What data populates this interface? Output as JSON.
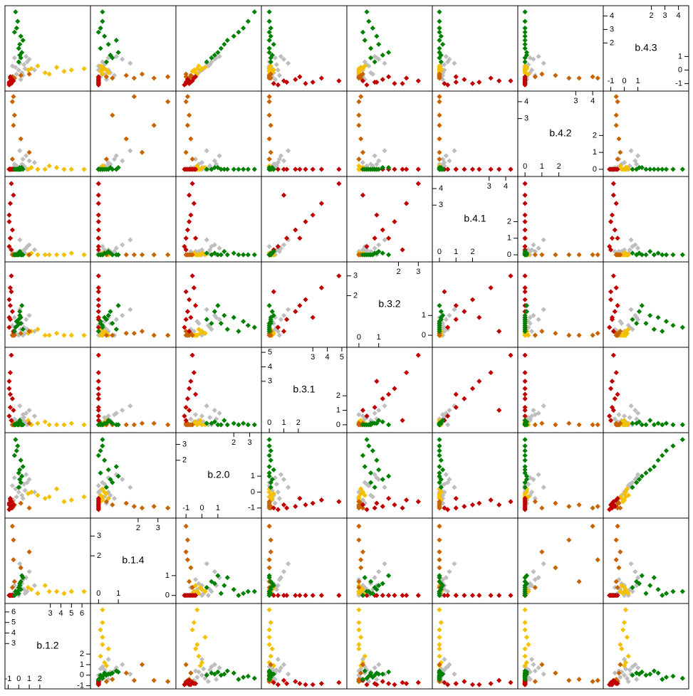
{
  "chart_data": {
    "type": "splom",
    "variables": [
      {
        "label": "b.1.2",
        "lim": [
          -1.1,
          6.6
        ],
        "ticks": [
          -1,
          0,
          1,
          2,
          3,
          4,
          5,
          6
        ]
      },
      {
        "label": "b.1.4",
        "lim": [
          -0.3,
          3.8
        ],
        "ticks": [
          0,
          1,
          2,
          3
        ]
      },
      {
        "label": "b.2.0",
        "lim": [
          -1.5,
          3.6
        ],
        "ticks": [
          -1,
          0,
          1,
          2,
          3
        ]
      },
      {
        "label": "b.3.1",
        "lim": [
          -0.4,
          5.2
        ],
        "ticks": [
          0,
          1,
          2,
          3,
          4,
          5
        ]
      },
      {
        "label": "b.3.2",
        "lim": [
          -0.5,
          3.6
        ],
        "ticks": [
          0,
          1,
          2,
          3
        ]
      },
      {
        "label": "b.4.1",
        "lim": [
          -0.3,
          4.6
        ],
        "ticks": [
          0,
          1,
          2,
          3,
          4
        ]
      },
      {
        "label": "b.4.2",
        "lim": [
          -0.3,
          4.5
        ],
        "ticks": [
          0,
          1,
          2,
          3,
          4
        ]
      },
      {
        "label": "b.4.3",
        "lim": [
          -1.4,
          4.6
        ],
        "ticks": [
          -1,
          0,
          1,
          2,
          3,
          4
        ]
      }
    ],
    "groups": [
      {
        "color": "#bebebe",
        "points": [
          [
            0.0,
            0.0,
            0.0,
            0.0,
            0.0,
            0.0,
            0.0,
            0.0
          ],
          [
            0.5,
            0.3,
            0.5,
            0.5,
            0.4,
            0.3,
            0.2,
            0.4
          ],
          [
            -0.5,
            0.1,
            -0.5,
            0.2,
            0.2,
            0.1,
            0.1,
            -0.5
          ],
          [
            1.0,
            1.2,
            0.8,
            1.0,
            1.0,
            0.6,
            0.5,
            0.8
          ],
          [
            0.3,
            0.6,
            -0.2,
            0.3,
            0.6,
            0.2,
            0.3,
            -0.2
          ],
          [
            -0.3,
            0.2,
            0.2,
            0.1,
            0.1,
            0.0,
            0.0,
            0.2
          ],
          [
            0.7,
            0.9,
            1.1,
            0.8,
            0.8,
            0.4,
            0.8,
            1.0
          ],
          [
            0.2,
            0.4,
            -0.7,
            0.4,
            0.3,
            0.2,
            0.1,
            -0.7
          ],
          [
            -0.6,
            0.0,
            0.4,
            0.0,
            0.5,
            0.1,
            0.0,
            0.3
          ],
          [
            1.5,
            0.5,
            0.0,
            0.6,
            0.2,
            0.3,
            0.4,
            0.0
          ],
          [
            0.1,
            1.6,
            0.3,
            1.3,
            1.3,
            0.9,
            1.1,
            0.5
          ],
          [
            -0.2,
            0.3,
            -0.3,
            0.2,
            0.7,
            0.1,
            0.2,
            -0.3
          ],
          [
            0.8,
            0.2,
            0.6,
            0.0,
            0.3,
            0.5,
            0.0,
            0.6
          ],
          [
            0.4,
            0.8,
            -0.4,
            0.7,
            0.0,
            0.2,
            0.6,
            -0.4
          ],
          [
            -0.4,
            0.5,
            0.9,
            0.4,
            0.9,
            0.0,
            0.3,
            0.9
          ],
          [
            0.6,
            0.1,
            0.1,
            0.2,
            0.1,
            0.1,
            0.1,
            0.1
          ]
        ]
      },
      {
        "color": "#f5c000",
        "points": [
          [
            6.2,
            0.2,
            -0.3,
            0.0,
            0.0,
            0.0,
            0.0,
            0.1
          ],
          [
            5.0,
            0.2,
            -0.5,
            0.1,
            0.0,
            0.1,
            0.0,
            0.0
          ],
          [
            3.6,
            0.2,
            0.2,
            0.0,
            0.1,
            0.0,
            0.1,
            0.2
          ],
          [
            2.5,
            0.5,
            -0.4,
            0.2,
            0.0,
            0.0,
            0.0,
            -0.2
          ],
          [
            1.8,
            0.1,
            -0.2,
            0.1,
            0.3,
            0.0,
            0.0,
            0.3
          ],
          [
            1.2,
            0.3,
            0.0,
            0.0,
            0.2,
            0.1,
            0.1,
            0.1
          ],
          [
            4.3,
            0.1,
            -0.6,
            0.0,
            0.0,
            0.0,
            0.0,
            -0.1
          ],
          [
            0.9,
            0.4,
            -0.1,
            0.3,
            0.1,
            0.0,
            0.0,
            0.0
          ],
          [
            2.9,
            0.2,
            -0.3,
            0.0,
            0.0,
            0.0,
            0.2,
            -0.3
          ]
        ]
      },
      {
        "color": "#c86400",
        "points": [
          [
            -0.6,
            3.5,
            -1.0,
            0.0,
            0.0,
            0.0,
            4.0,
            -0.5
          ],
          [
            -0.5,
            2.8,
            -0.9,
            0.1,
            0.0,
            0.0,
            2.6,
            -0.6
          ],
          [
            0.2,
            1.4,
            -0.7,
            0.0,
            0.1,
            0.0,
            1.8,
            -0.4
          ],
          [
            -0.4,
            0.7,
            -0.8,
            0.0,
            0.0,
            0.0,
            3.2,
            -0.6
          ],
          [
            1.0,
            2.2,
            -1.0,
            0.1,
            0.2,
            0.0,
            1.0,
            -0.3
          ],
          [
            -0.6,
            0.4,
            -0.6,
            0.0,
            0.0,
            0.0,
            0.6,
            -0.5
          ],
          [
            -0.5,
            1.8,
            -0.9,
            0.0,
            0.1,
            0.0,
            4.3,
            -0.6
          ]
        ]
      },
      {
        "color": "#c00000",
        "points": [
          [
            -0.8,
            0.0,
            -1.0,
            1.2,
            0.8,
            1.0,
            0.0,
            -0.9
          ],
          [
            -0.9,
            0.0,
            -0.8,
            2.5,
            1.8,
            2.0,
            0.0,
            -1.0
          ],
          [
            -0.7,
            0.0,
            -0.6,
            4.8,
            3.0,
            4.3,
            0.0,
            -0.8
          ],
          [
            -0.9,
            0.0,
            -1.1,
            0.6,
            0.4,
            0.5,
            0.0,
            -1.1
          ],
          [
            -0.8,
            0.0,
            -0.5,
            3.6,
            2.4,
            3.1,
            0.0,
            -0.6
          ],
          [
            -0.6,
            0.0,
            -0.9,
            1.8,
            1.2,
            1.5,
            0.0,
            -0.7
          ],
          [
            -0.9,
            0.0,
            -0.7,
            3.0,
            0.9,
            2.4,
            0.0,
            -0.9
          ],
          [
            -0.7,
            0.0,
            -1.0,
            0.3,
            2.2,
            0.3,
            0.0,
            -1.0
          ],
          [
            -0.8,
            0.0,
            -0.4,
            2.1,
            1.5,
            1.0,
            0.0,
            -0.5
          ],
          [
            -0.5,
            0.0,
            -0.8,
            1.0,
            0.2,
            3.6,
            0.0,
            -0.8
          ]
        ]
      },
      {
        "color": "#008000",
        "points": [
          [
            0.0,
            0.1,
            1.2,
            0.0,
            0.6,
            0.0,
            0.0,
            1.6
          ],
          [
            0.2,
            0.3,
            2.0,
            0.1,
            0.9,
            0.1,
            0.0,
            2.5
          ],
          [
            -0.3,
            0.2,
            3.3,
            0.0,
            0.4,
            0.0,
            0.0,
            4.3
          ],
          [
            0.1,
            0.6,
            0.8,
            0.2,
            1.2,
            0.1,
            0.1,
            1.1
          ],
          [
            0.4,
            0.9,
            1.6,
            0.0,
            0.3,
            0.0,
            0.0,
            2.2
          ],
          [
            -0.2,
            0.1,
            2.6,
            0.1,
            0.7,
            0.0,
            0.0,
            3.1
          ],
          [
            0.0,
            0.4,
            0.3,
            0.1,
            0.8,
            0.1,
            0.0,
            0.6
          ],
          [
            0.3,
            1.0,
            1.0,
            0.0,
            1.5,
            0.0,
            0.1,
            1.3
          ],
          [
            -0.4,
            0.0,
            2.3,
            0.0,
            0.2,
            0.0,
            0.0,
            2.8
          ],
          [
            0.1,
            0.5,
            1.4,
            0.3,
            1.0,
            0.2,
            0.0,
            1.9
          ],
          [
            -0.1,
            0.2,
            2.9,
            0.0,
            0.5,
            0.0,
            0.0,
            3.6
          ],
          [
            0.2,
            0.7,
            0.6,
            0.1,
            0.6,
            0.0,
            0.0,
            0.9
          ]
        ]
      }
    ]
  }
}
